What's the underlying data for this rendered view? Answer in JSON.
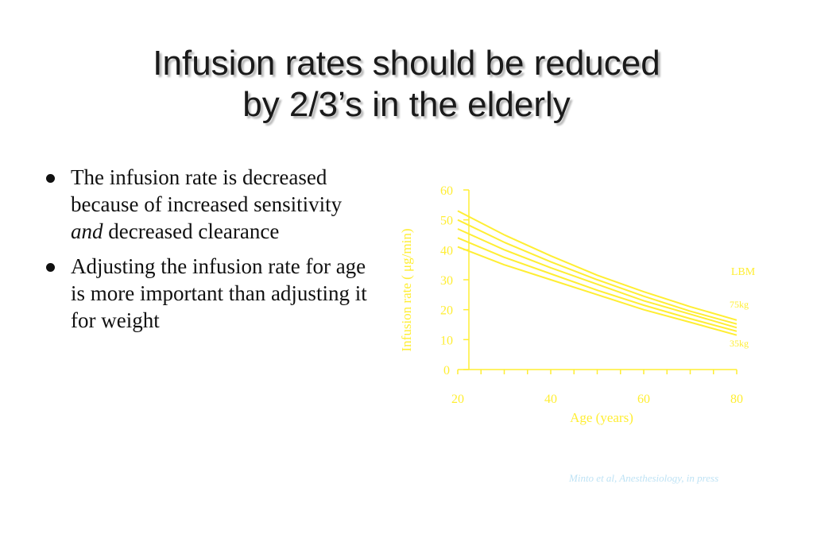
{
  "slide": {
    "title_lines": [
      "Infusion rates should be reduced",
      "by 2/3’s in the elderly"
    ],
    "bullets": [
      {
        "before": "The infusion rate is decreased because of increased sensitivity ",
        "emphasis": "and",
        "after": " decreased clearance"
      },
      {
        "before": "Adjusting the infusion rate for age is more important than adjusting it for weight",
        "emphasis": "",
        "after": ""
      }
    ],
    "citation": "Minto et al, Anesthesiology, in press"
  },
  "chart_data": {
    "type": "line",
    "xlabel": "Age (years)",
    "ylabel": "Infusion rate (  μg/min)",
    "xlim": [
      20,
      80
    ],
    "ylim": [
      0,
      60
    ],
    "x_ticks": [
      20,
      40,
      60,
      80
    ],
    "y_ticks": [
      0,
      10,
      20,
      30,
      40,
      50,
      60
    ],
    "grid": false,
    "line_color": "#ffee33",
    "legend_title": "LBM",
    "annotations": [
      "75kg",
      "35kg"
    ],
    "x": [
      20,
      30,
      40,
      50,
      60,
      70,
      80
    ],
    "series": [
      {
        "name": "75kg",
        "values": [
          53,
          45,
          38,
          31.5,
          26,
          21,
          16.5
        ]
      },
      {
        "values": [
          50,
          42.5,
          36,
          30,
          24.5,
          19.5,
          15.2
        ]
      },
      {
        "values": [
          47,
          40,
          34,
          28.5,
          23,
          18.5,
          14
        ]
      },
      {
        "values": [
          44,
          37.5,
          32,
          26.5,
          21.5,
          17,
          12.8
        ]
      },
      {
        "name": "35kg",
        "values": [
          41,
          35,
          30,
          25,
          20,
          15.8,
          11.5
        ]
      }
    ]
  }
}
